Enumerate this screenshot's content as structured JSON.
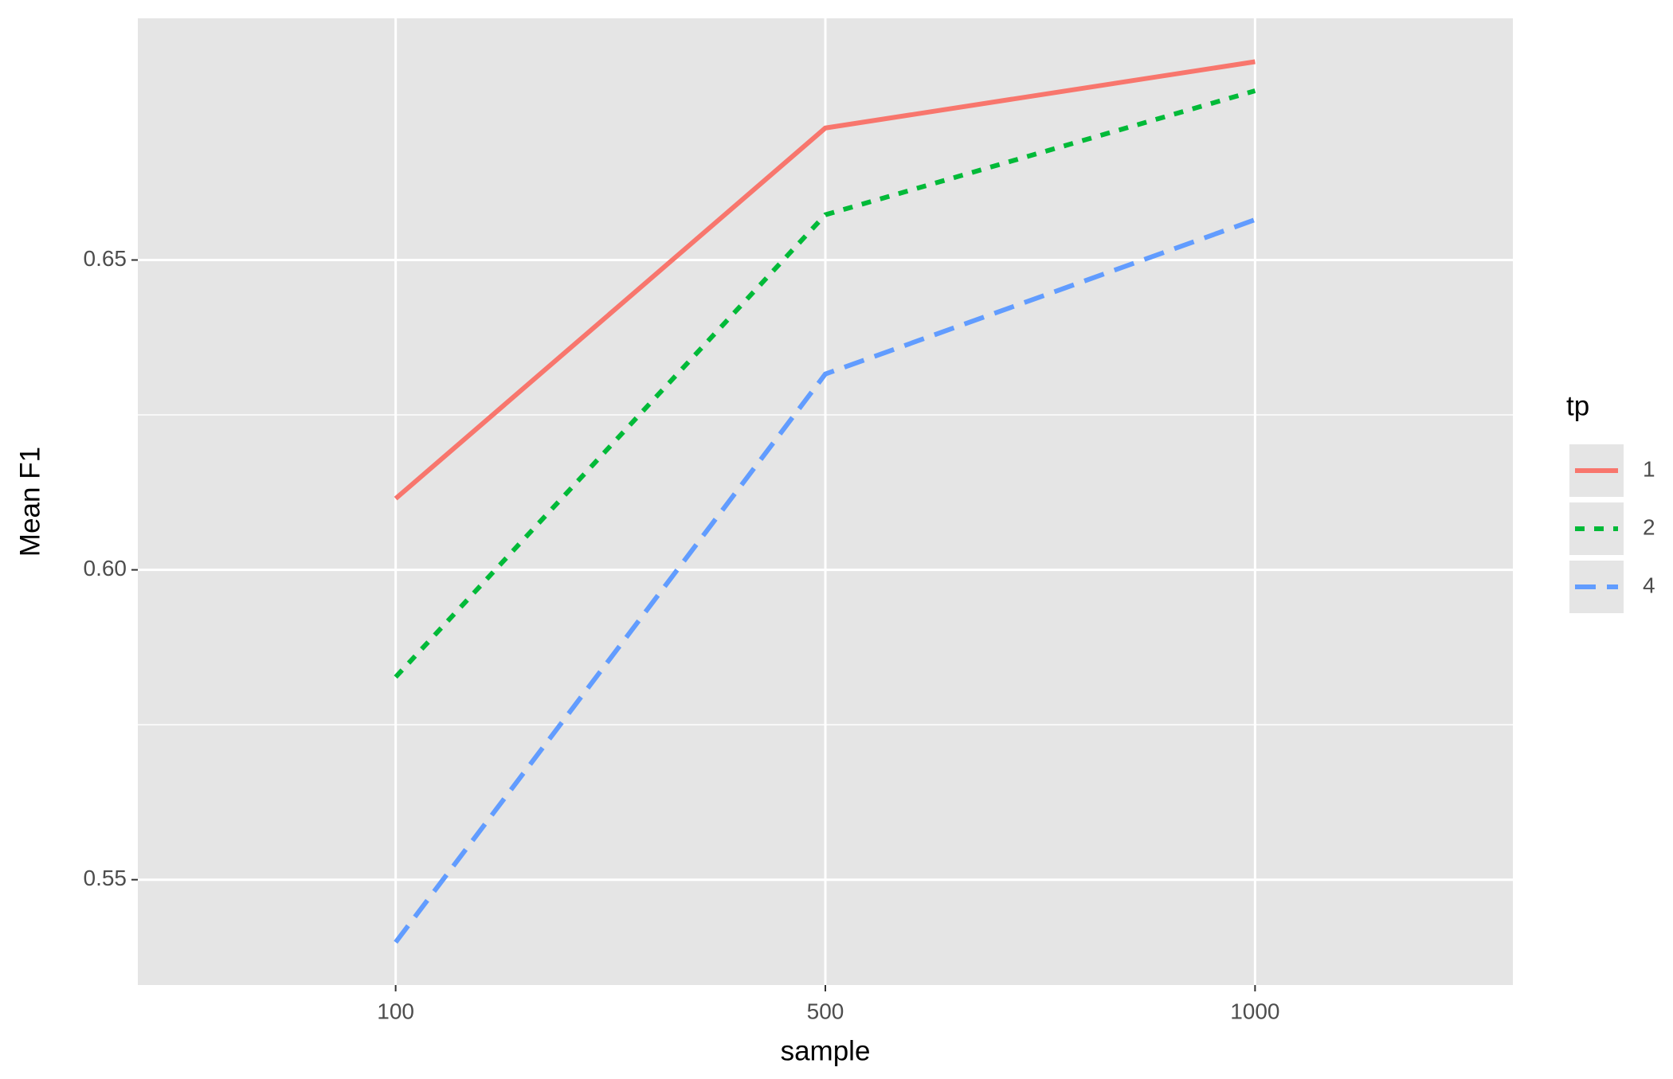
{
  "chart_data": {
    "type": "line",
    "x_label": "sample",
    "y_label": "Mean F1",
    "categories": [
      "100",
      "500",
      "1000"
    ],
    "ylim": [
      0.533,
      0.689
    ],
    "yticks": [
      0.55,
      {
        "value": 0.6,
        "label": "0.60"
      },
      0.65
    ],
    "grid": true,
    "legend_title": "tp",
    "legend_position": "right",
    "series": [
      {
        "name": "1",
        "color": "#f8766d",
        "linetype": "solid",
        "values": [
          0.6115,
          0.6713,
          0.682
        ]
      },
      {
        "name": "2",
        "color": "#00ba38",
        "linetype": "dotted",
        "values": [
          0.5827,
          0.6573,
          0.6773
        ]
      },
      {
        "name": "4",
        "color": "#619cff",
        "linetype": "dashed",
        "values": [
          0.5399,
          0.6316,
          0.6565
        ]
      }
    ]
  }
}
